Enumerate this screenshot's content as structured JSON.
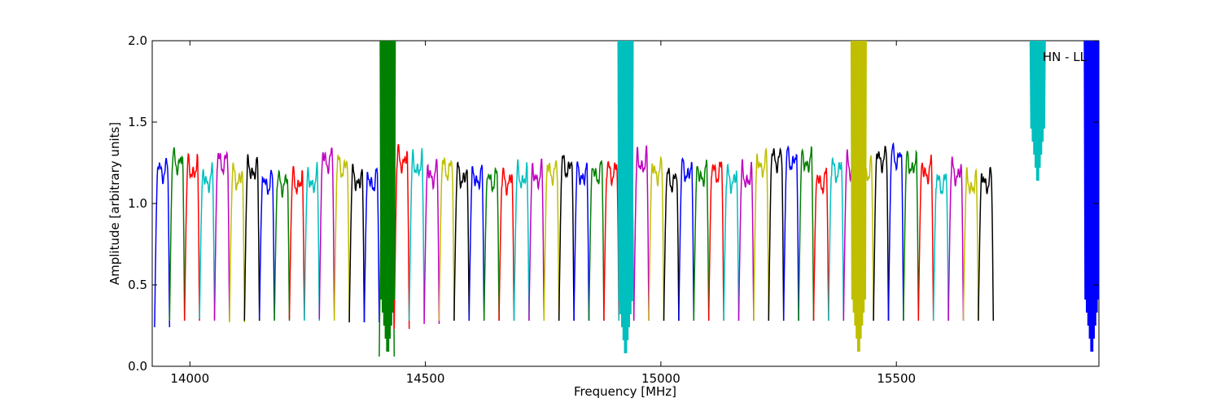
{
  "chart_data": {
    "type": "line",
    "title": "",
    "xlabel": "Frequency [MHz]",
    "ylabel": "Amplitude [arbitrary units]",
    "xlim": [
      13920,
      15930
    ],
    "ylim": [
      0.0,
      2.0
    ],
    "xticks": [
      14000,
      14500,
      15000,
      15500
    ],
    "xtick_labels": [
      "14000",
      "14500",
      "15000",
      "15500"
    ],
    "yticks": [
      0.0,
      0.5,
      1.0,
      1.5,
      2.0
    ],
    "ytick_labels": [
      "0.0",
      "0.5",
      "1.0",
      "1.5",
      "2.0"
    ],
    "annotation": "HN - LL",
    "grid": false,
    "legend": "none",
    "colors": [
      "#0000ff",
      "#008000",
      "#ff0000",
      "#00bfbf",
      "#bf00bf",
      "#bfbf00",
      "#000000"
    ],
    "band_start": 13925,
    "band_spacing": 31.8,
    "band_peaks": [
      1.27,
      1.32,
      1.27,
      1.21,
      1.32,
      1.22,
      1.27,
      1.19,
      1.19,
      1.19,
      1.2,
      1.33,
      1.29,
      1.21,
      1.2,
      1.82,
      1.33,
      1.29,
      1.24,
      1.28,
      1.23,
      1.22,
      1.21,
      1.2,
      1.22,
      1.23,
      1.26,
      1.29,
      1.24,
      1.25,
      1.26,
      1.29,
      1.31,
      1.26,
      1.21,
      1.26,
      1.24,
      1.26,
      1.21,
      1.22,
      1.3,
      1.34,
      1.33,
      1.32,
      1.2,
      1.27,
      1.28,
      1.26,
      1.34,
      1.35,
      1.3,
      1.26,
      1.19,
      1.25,
      1.18,
      1.2
    ],
    "band_mins": [
      0.24,
      0.28,
      0.28,
      0.29,
      0.28,
      0.27,
      0.28,
      0.29,
      0.28,
      0.29,
      0.28,
      0.29,
      0.28,
      0.27,
      0.27,
      0.06,
      0.23,
      0.28,
      0.26,
      0.28,
      0.28,
      0.28,
      0.28,
      0.28,
      0.28,
      0.28,
      0.28,
      0.28,
      0.28,
      0.28,
      0.28,
      0.28,
      0.28,
      0.28,
      0.28,
      0.28,
      0.28,
      0.28,
      0.28,
      0.28,
      0.28,
      0.28,
      0.28,
      0.28,
      0.28,
      0.28,
      0.28,
      0.28,
      0.28,
      0.28,
      0.28,
      0.28,
      0.28,
      0.28,
      0.28,
      0.28
    ],
    "spikes": [
      {
        "x": 14420,
        "low": 0.05,
        "high": 2.0,
        "color": "#008000"
      },
      {
        "x": 14925,
        "low": 0.04,
        "high": 2.0,
        "color": "#00bfbf"
      },
      {
        "x": 15420,
        "low": 0.05,
        "high": 2.0,
        "color": "#bfbf00"
      },
      {
        "x": 15800,
        "low": 1.1,
        "high": 2.0,
        "color": "#00bfbf"
      },
      {
        "x": 15915,
        "low": 0.05,
        "high": 2.0,
        "color": "#0000ff"
      }
    ]
  }
}
